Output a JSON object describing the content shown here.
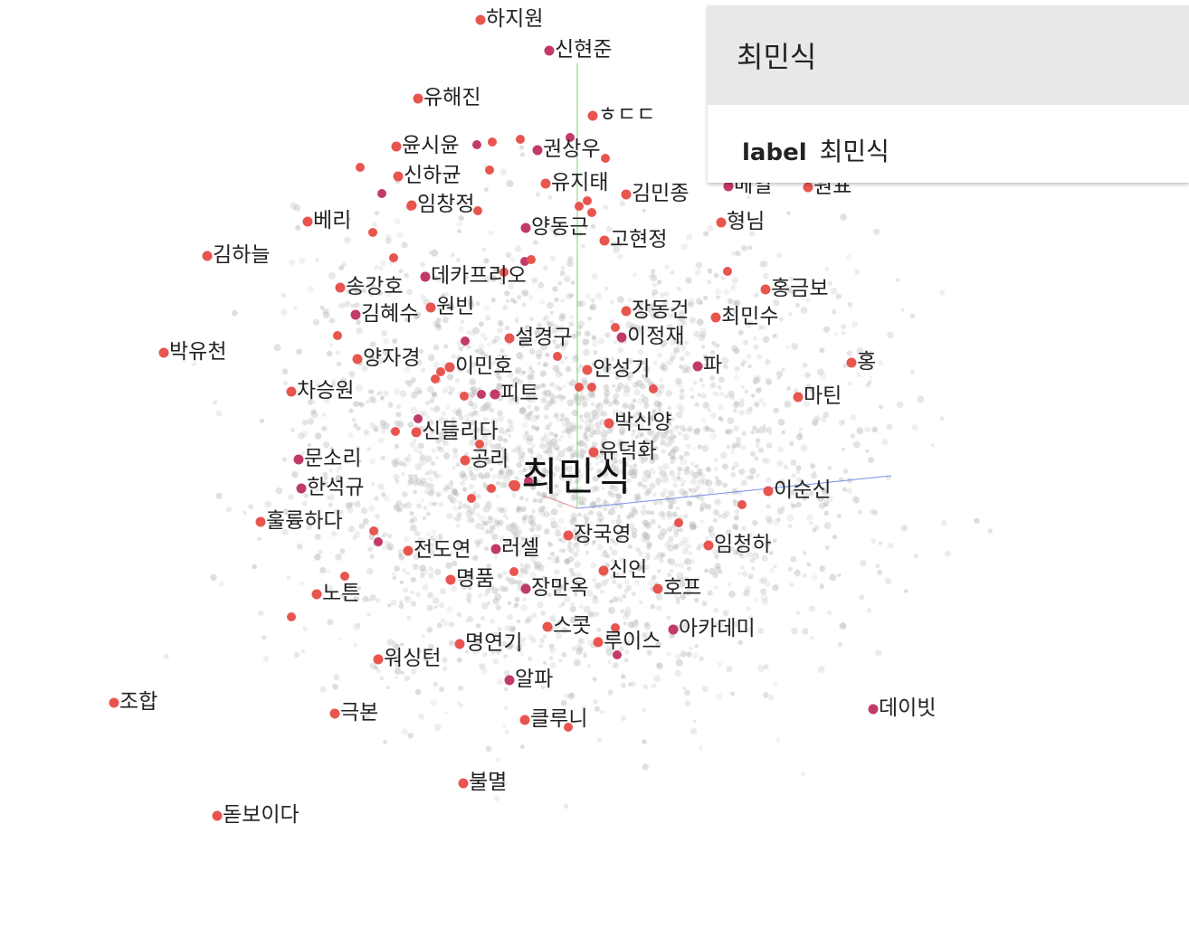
{
  "selected": {
    "title": "최민식",
    "field_key": "label",
    "field_value": "최민식"
  },
  "colors": {
    "point_red": "#e8554f",
    "point_magenta": "#c23a6a",
    "background_point": "#bdbdbd",
    "axis_x": "#e88a8a",
    "axis_y": "#7ed07e",
    "axis_z": "#7a8fe8"
  },
  "focus_word": "최민식",
  "neighbors": [
    "하지원",
    "신현준",
    "유해진",
    "ㅎㄷㄷ",
    "윤시윤",
    "권상우",
    "신하균",
    "유지태",
    "김민종",
    "메일",
    "원표",
    "임창정",
    "베리",
    "양동근",
    "형님",
    "김하늘",
    "고현정",
    "데카프리오",
    "송강호",
    "홍금보",
    "원빈",
    "김혜수",
    "장동건",
    "최민수",
    "설경구",
    "이정재",
    "박유천",
    "양자경",
    "이민호",
    "파",
    "홍",
    "안성기",
    "차승원",
    "피트",
    "마틴",
    "박신양",
    "신들리다",
    "문소리",
    "공리",
    "유덕화",
    "이순신",
    "한석규",
    "훌륭하다",
    "장국영",
    "임청하",
    "러셀",
    "전도연",
    "신인",
    "명품",
    "장만옥",
    "호프",
    "노튼",
    "스콧",
    "아카데미",
    "루이스",
    "명연기",
    "워싱턴",
    "알파",
    "조합",
    "극본",
    "클루니",
    "데이빗",
    "불멸",
    "돋보이다"
  ]
}
